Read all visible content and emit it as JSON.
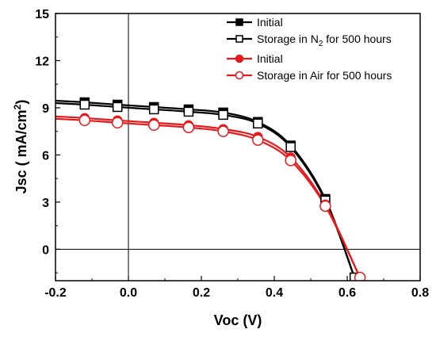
{
  "chart_data": {
    "type": "line",
    "xlabel": "Voc (V)",
    "ylabel": "Jsc ( mA/cm2)",
    "ylabel_main": "Jsc ( mA/cm",
    "ylabel_sup": "2",
    "ylabel_tail": ")",
    "xlim": [
      -0.2,
      0.8
    ],
    "ylim": [
      -2,
      15
    ],
    "xticks": [
      "-0.2",
      "0.0",
      "0.2",
      "0.4",
      "0.6",
      "0.8"
    ],
    "yticks": [
      "0",
      "3",
      "6",
      "9",
      "12",
      "15"
    ],
    "xtick_values": [
      -0.2,
      0.0,
      0.2,
      0.4,
      0.6,
      0.8
    ],
    "ytick_values": [
      0,
      3,
      6,
      9,
      12,
      15
    ],
    "grid": false,
    "zero_lines": true,
    "legend_placement": "top-right",
    "series": [
      {
        "name": "Initial",
        "color": "#000000",
        "marker": "filled-square",
        "x": [
          -0.2,
          -0.12,
          -0.03,
          0.07,
          0.165,
          0.26,
          0.355,
          0.445,
          0.54,
          0.62
        ],
        "y": [
          9.45,
          9.35,
          9.2,
          9.05,
          8.9,
          8.7,
          8.1,
          6.6,
          3.2,
          -1.8
        ]
      },
      {
        "name": "Storage in N2 for 500 hours",
        "name_main": "Storage in N",
        "name_sub": "2",
        "name_tail": " for 500 hours",
        "color": "#000000",
        "marker": "open-square",
        "x": [
          -0.2,
          -0.12,
          -0.03,
          0.07,
          0.165,
          0.26,
          0.355,
          0.445,
          0.54,
          0.62
        ],
        "y": [
          9.3,
          9.2,
          9.05,
          8.9,
          8.75,
          8.55,
          8.0,
          6.5,
          3.1,
          -1.8
        ]
      },
      {
        "name": "Initial",
        "color": "#e8191c",
        "marker": "filled-circle",
        "x": [
          -0.2,
          -0.12,
          -0.03,
          0.07,
          0.165,
          0.26,
          0.355,
          0.445,
          0.54,
          0.635
        ],
        "y": [
          8.45,
          8.35,
          8.2,
          8.05,
          7.9,
          7.65,
          7.15,
          5.85,
          2.85,
          -1.8
        ]
      },
      {
        "name": "Storage in Air for 500 hours",
        "color": "#e8191c",
        "marker": "open-circle",
        "x": [
          -0.2,
          -0.12,
          -0.03,
          0.07,
          0.165,
          0.26,
          0.355,
          0.445,
          0.54,
          0.635
        ],
        "y": [
          8.3,
          8.2,
          8.05,
          7.9,
          7.75,
          7.5,
          6.95,
          5.65,
          2.75,
          -1.8
        ]
      }
    ]
  }
}
